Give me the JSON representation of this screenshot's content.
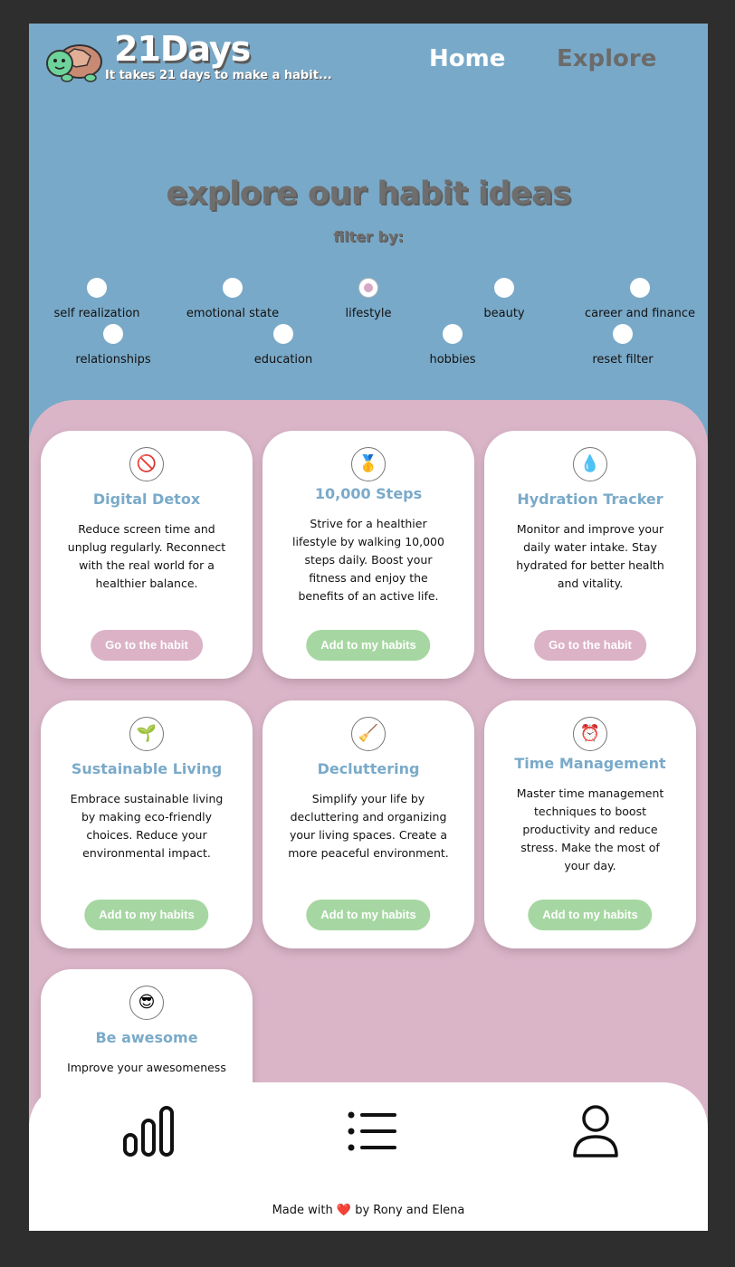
{
  "brand": {
    "name": "21Days",
    "tagline": "It takes 21 days to make a habit..."
  },
  "nav": {
    "home": "Home",
    "explore": "Explore"
  },
  "headline": "explore our habit ideas",
  "filter_label": "filter by:",
  "filters": [
    {
      "label": "self realization",
      "selected": false
    },
    {
      "label": "emotional state",
      "selected": false
    },
    {
      "label": "lifestyle",
      "selected": true
    },
    {
      "label": "beauty",
      "selected": false
    },
    {
      "label": "career and finance",
      "selected": false
    },
    {
      "label": "relationships",
      "selected": false
    },
    {
      "label": "education",
      "selected": false
    },
    {
      "label": "hobbies",
      "selected": false
    },
    {
      "label": "reset filter",
      "selected": false
    }
  ],
  "cards": [
    {
      "icon": "🚫",
      "icon_name": "no-phone-icon",
      "title": "Digital Detox",
      "desc": "Reduce screen time and unplug regularly. Reconnect with the real world for a healthier balance.",
      "button": "Go to the habit"
    },
    {
      "icon": "🥇",
      "icon_name": "medal-icon",
      "title": "10,000 Steps",
      "desc": "Strive for a healthier lifestyle by walking 10,000 steps daily. Boost your fitness and enjoy the benefits of an active life.",
      "button": "Add to my habits"
    },
    {
      "icon": "💧",
      "icon_name": "water-drop-icon",
      "title": "Hydration Tracker",
      "desc": "Monitor and improve your daily water intake. Stay hydrated for better health and vitality.",
      "button": "Go to the habit"
    },
    {
      "icon": "🌱",
      "icon_name": "seedling-icon",
      "title": "Sustainable Living",
      "desc": "Embrace sustainable living by making eco-friendly choices. Reduce your environmental impact.",
      "button": "Add to my habits"
    },
    {
      "icon": "🧹",
      "icon_name": "broom-icon",
      "title": "Decluttering",
      "desc": "Simplify your life by decluttering and organizing your living spaces. Create a more peaceful environment.",
      "button": "Add to my habits"
    },
    {
      "icon": "⏰",
      "icon_name": "alarm-clock-icon",
      "title": "Time Management",
      "desc": "Master time management techniques to boost productivity and reduce stress. Make the most of your day.",
      "button": "Add to my habits"
    },
    {
      "icon": "😎",
      "icon_name": "sunglasses-face-icon",
      "title": "Be awesome",
      "desc": "Improve your awesomeness",
      "button": ""
    }
  ],
  "footer": {
    "prefix": "Made with",
    "heart": "❤️",
    "suffix": "by Rony and Elena"
  },
  "colors": {
    "header_bg": "#79a9c8",
    "pink_bg": "#dab5c8",
    "title_blue": "#7aaac9",
    "btn_go": "#dbb2c6",
    "btn_add": "#a6d7a2"
  }
}
